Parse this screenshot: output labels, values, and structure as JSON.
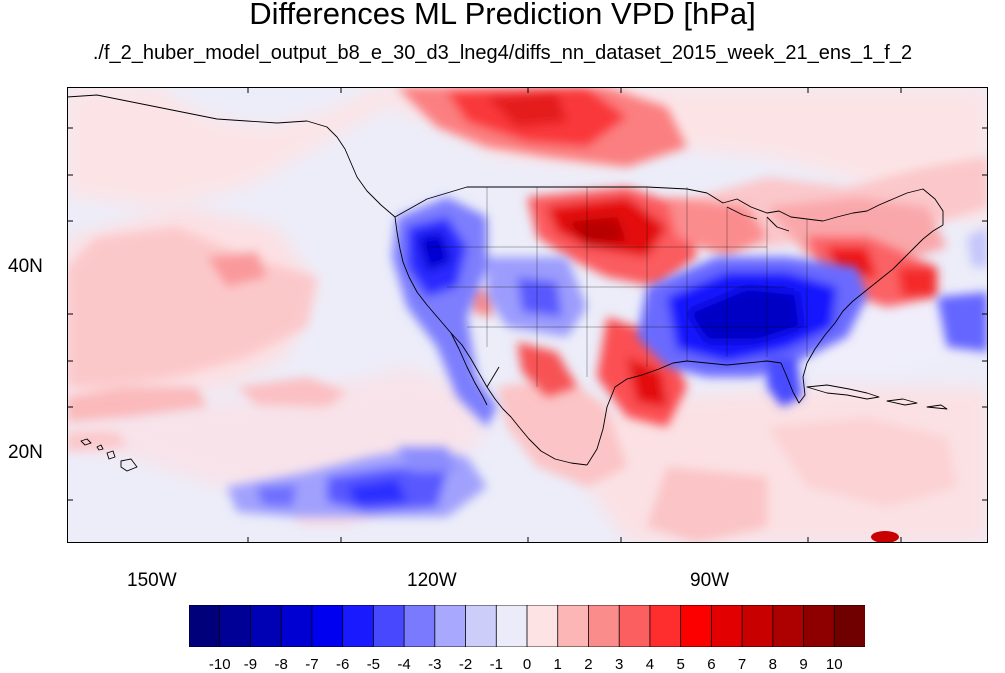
{
  "title": "Differences ML Prediction VPD [hPa]",
  "subtitle": "./f_2_huber_model_output_b8_e_30_d3_lneg4/diffs_nn_dataset_2015_week_21_ens_1_f_2",
  "map": {
    "lon_range": [
      -160,
      -62
    ],
    "lat_range": [
      10,
      59
    ],
    "lon_ticks": [
      {
        "lon": -150,
        "label": "150W"
      },
      {
        "lon": -120,
        "label": "120W"
      },
      {
        "lon": -90,
        "label": "90W"
      }
    ],
    "lat_ticks": [
      {
        "lat": 40,
        "label": "40N"
      },
      {
        "lat": 20,
        "label": "20N"
      }
    ]
  },
  "colorbar": {
    "labels": [
      "-10",
      "-9",
      "-8",
      "-7",
      "-6",
      "-5",
      "-4",
      "-3",
      "-2",
      "-1",
      "0",
      "1",
      "2",
      "3",
      "4",
      "5",
      "6",
      "7",
      "8",
      "9",
      "10"
    ],
    "colors": [
      "#00007a",
      "#000097",
      "#0000b4",
      "#0000d3",
      "#0000f0",
      "#1a1aff",
      "#4848ff",
      "#7a7aff",
      "#a8a8ff",
      "#cdcdfa",
      "#ebebfa",
      "#fde3e3",
      "#fcb6b6",
      "#fb8c8c",
      "#fb5f5f",
      "#ff2e2e",
      "#fc0000",
      "#e20000",
      "#c90000",
      "#ad0000",
      "#8e0000",
      "#700000"
    ]
  },
  "colors": {
    "background": "#ffffff",
    "frame": "#000000"
  }
}
